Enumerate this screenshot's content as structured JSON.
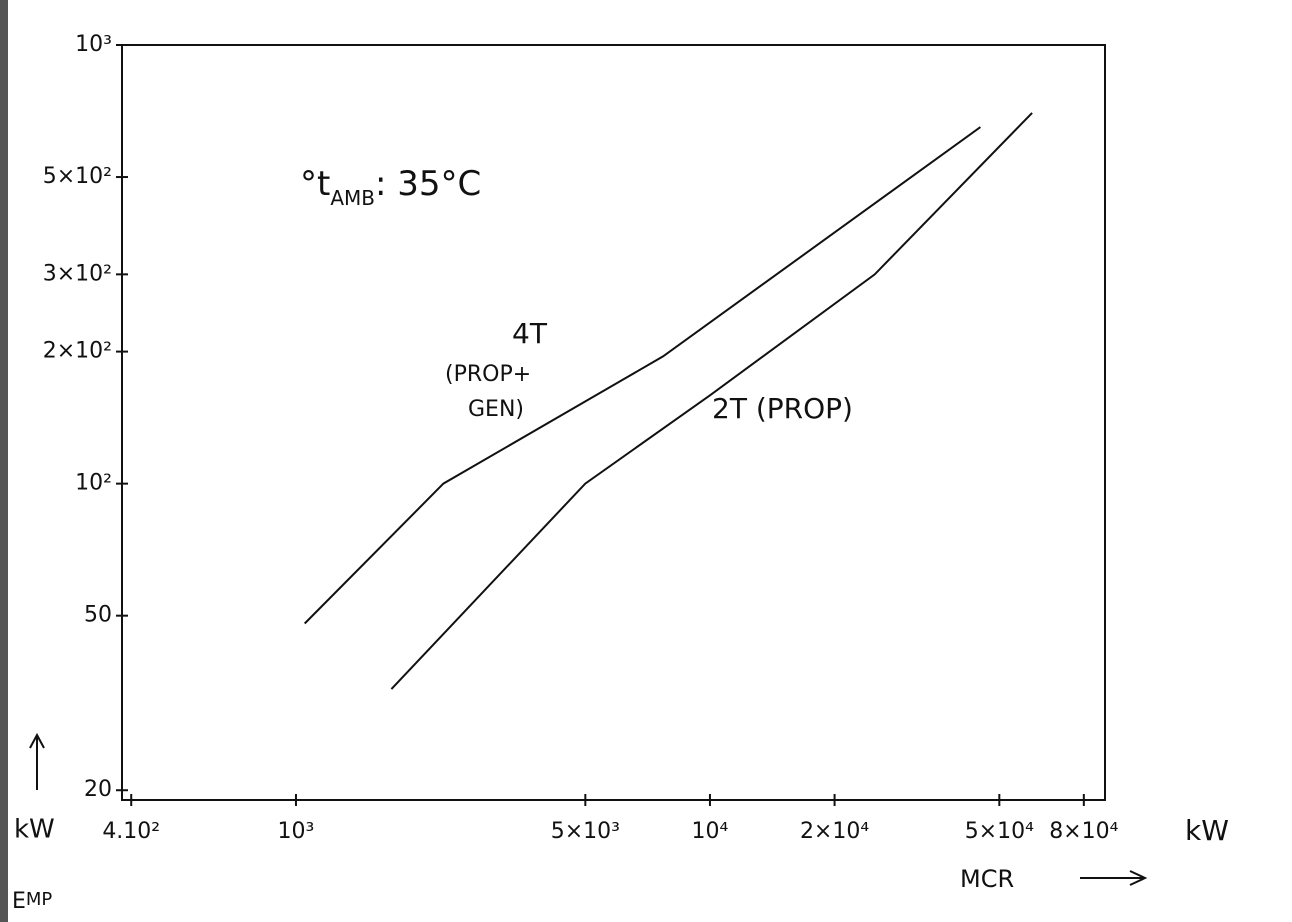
{
  "chart_data": {
    "type": "line",
    "annotation": {
      "pre": "°t",
      "sub": "AMB",
      "post": ": 35°C"
    },
    "x_label": "MCR",
    "x_unit": "kW",
    "y_label": {
      "main": "E",
      "sub": "MP"
    },
    "y_unit": "kW",
    "xscale": "log",
    "yscale": "log",
    "xlim": [
      380,
      90000
    ],
    "ylim": [
      19,
      1000
    ],
    "xticks": [
      {
        "value": 400,
        "label": "4.10²"
      },
      {
        "value": 1000,
        "label": "10³"
      },
      {
        "value": 5000,
        "label": "5×10³"
      },
      {
        "value": 10000,
        "label": "10⁴"
      },
      {
        "value": 20000,
        "label": "2×10⁴"
      },
      {
        "value": 50000,
        "label": "5×10⁴"
      },
      {
        "value": 80000,
        "label": "8×10⁴"
      }
    ],
    "yticks": [
      20,
      50,
      {
        "value": 100,
        "label": "10²"
      },
      {
        "value": 200,
        "label": "2×10²"
      },
      {
        "value": 300,
        "label": "3×10²"
      },
      {
        "value": 500,
        "label": "5×10²"
      },
      {
        "value": 1000,
        "label": "10³"
      }
    ],
    "series": [
      {
        "name": "4T",
        "note": [
          "(PROP+",
          "GEN)"
        ],
        "color": "#111111",
        "x": [
          1050,
          2270,
          7700,
          45000
        ],
        "values": [
          48,
          100,
          195,
          650
        ]
      },
      {
        "name": "2T (PROP)",
        "color": "#111111",
        "x": [
          1700,
          5000,
          10000,
          25000,
          60000
        ],
        "values": [
          34,
          100,
          159,
          300,
          700
        ]
      }
    ]
  }
}
